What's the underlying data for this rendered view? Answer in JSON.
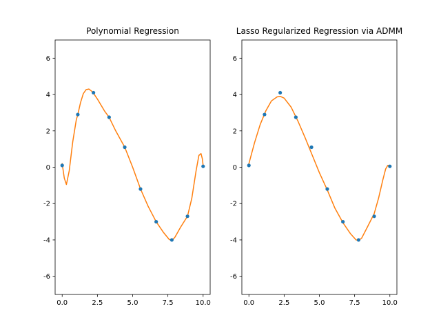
{
  "chart_data": [
    {
      "type": "scatter",
      "title": "Polynomial Regression",
      "xlim": [
        -0.5,
        10.5
      ],
      "ylim": [
        -7,
        7
      ],
      "xticks": [
        "0.0",
        "2.5",
        "5.0",
        "7.5",
        "10.0"
      ],
      "yticks": [
        "-6",
        "-4",
        "-2",
        "0",
        "2",
        "4",
        "6"
      ],
      "grid": false,
      "points": {
        "color": "#1f77b4",
        "x": [
          0.0,
          1.11,
          2.22,
          3.33,
          4.44,
          5.56,
          6.67,
          7.78,
          8.89,
          10.0
        ],
        "y": [
          0.1,
          2.9,
          4.1,
          2.75,
          1.1,
          -1.2,
          -3.0,
          -4.0,
          -2.7,
          0.05
        ]
      },
      "fit_curve": {
        "color": "#ff7f0e",
        "x": [
          0.0,
          0.15,
          0.3,
          0.5,
          0.75,
          1.0,
          1.11,
          1.3,
          1.5,
          1.7,
          1.9,
          2.1,
          2.22,
          2.5,
          3.0,
          3.33,
          3.8,
          4.44,
          5.0,
          5.56,
          6.1,
          6.67,
          7.2,
          7.6,
          7.8,
          8.0,
          8.4,
          8.89,
          9.2,
          9.5,
          9.7,
          9.85,
          9.95,
          10.0
        ],
        "y": [
          0.2,
          -0.6,
          -0.95,
          -0.2,
          1.4,
          2.6,
          2.9,
          3.55,
          4.05,
          4.27,
          4.3,
          4.18,
          4.07,
          3.75,
          3.1,
          2.75,
          2.0,
          1.1,
          0.0,
          -1.2,
          -2.15,
          -3.0,
          -3.6,
          -3.98,
          -4.02,
          -3.85,
          -3.3,
          -2.7,
          -1.7,
          -0.2,
          0.65,
          0.75,
          0.45,
          0.1
        ]
      }
    },
    {
      "type": "scatter",
      "title": "Lasso Regularized Regression via ADMM",
      "xlim": [
        -0.5,
        10.5
      ],
      "ylim": [
        -7,
        7
      ],
      "xticks": [
        "0.0",
        "2.5",
        "5.0",
        "7.5",
        "10.0"
      ],
      "yticks": [
        "-6",
        "-4",
        "-2",
        "0",
        "2",
        "4",
        "6"
      ],
      "grid": false,
      "points": {
        "color": "#1f77b4",
        "x": [
          0.0,
          1.11,
          2.22,
          3.33,
          4.44,
          5.56,
          6.67,
          7.78,
          8.89,
          10.0
        ],
        "y": [
          0.1,
          2.9,
          4.1,
          2.75,
          1.1,
          -1.2,
          -3.0,
          -4.0,
          -2.7,
          0.05
        ]
      },
      "fit_curve": {
        "color": "#ff7f0e",
        "x": [
          0.0,
          0.4,
          0.8,
          1.2,
          1.6,
          2.0,
          2.22,
          2.5,
          3.0,
          3.5,
          4.0,
          4.5,
          5.0,
          5.56,
          6.1,
          6.67,
          7.2,
          7.6,
          7.8,
          8.0,
          8.4,
          8.89,
          9.2,
          9.5,
          9.7,
          9.85,
          10.0
        ],
        "y": [
          0.2,
          1.35,
          2.35,
          3.1,
          3.65,
          3.87,
          3.9,
          3.8,
          3.3,
          2.5,
          1.6,
          0.65,
          -0.3,
          -1.25,
          -2.25,
          -3.05,
          -3.65,
          -4.0,
          -4.02,
          -3.9,
          -3.3,
          -2.55,
          -1.7,
          -0.7,
          -0.1,
          0.1,
          0.1
        ]
      }
    }
  ]
}
